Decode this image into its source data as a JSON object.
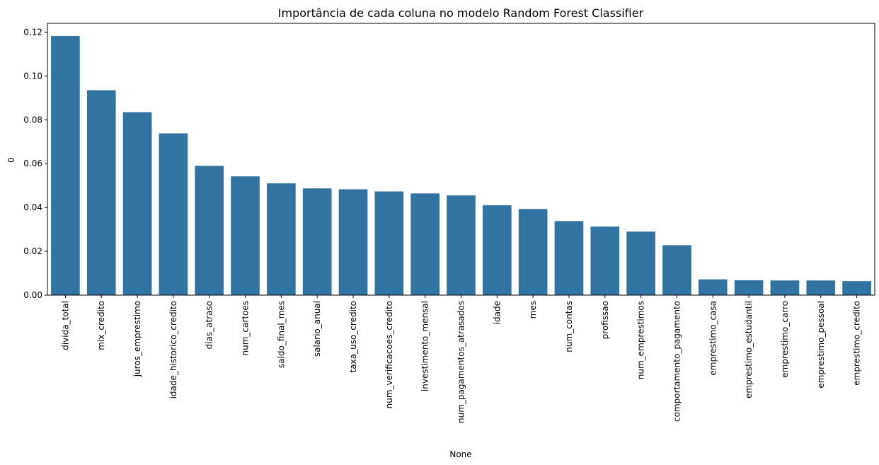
{
  "chart_data": {
    "type": "bar",
    "title": "Importância de cada coluna no modelo Random Forest Classifier",
    "xlabel": "None",
    "ylabel": "0",
    "ylim": [
      0,
      0.124
    ],
    "yticks": [
      0.0,
      0.02,
      0.04,
      0.06,
      0.08,
      0.1,
      0.12
    ],
    "ytick_labels": [
      "0.00",
      "0.02",
      "0.04",
      "0.06",
      "0.08",
      "0.10",
      "0.12"
    ],
    "grid": false,
    "color": "#3274a1",
    "categories": [
      "divida_total",
      "mix_credito",
      "juros_emprestimo",
      "idade_historico_credito",
      "dias_atraso",
      "num_cartoes",
      "saldo_final_mes",
      "salario_anual",
      "taxa_uso_credito",
      "num_verificacoes_credito",
      "investimento_mensal",
      "num_pagamentos_atrasados",
      "idade",
      "mes",
      "num_contas",
      "profissao",
      "num_emprestimos",
      "comportamento_pagamento",
      "emprestimo_casa",
      "emprestimo_estudantil",
      "emprestimo_carro",
      "emprestimo_pessoal",
      "emprestimo_credito"
    ],
    "values": [
      0.1182,
      0.0935,
      0.0835,
      0.0738,
      0.059,
      0.0542,
      0.051,
      0.0487,
      0.0483,
      0.0473,
      0.0464,
      0.0455,
      0.041,
      0.0393,
      0.0338,
      0.0313,
      0.029,
      0.0228,
      0.0072,
      0.0068,
      0.0067,
      0.0067,
      0.0064
    ]
  }
}
